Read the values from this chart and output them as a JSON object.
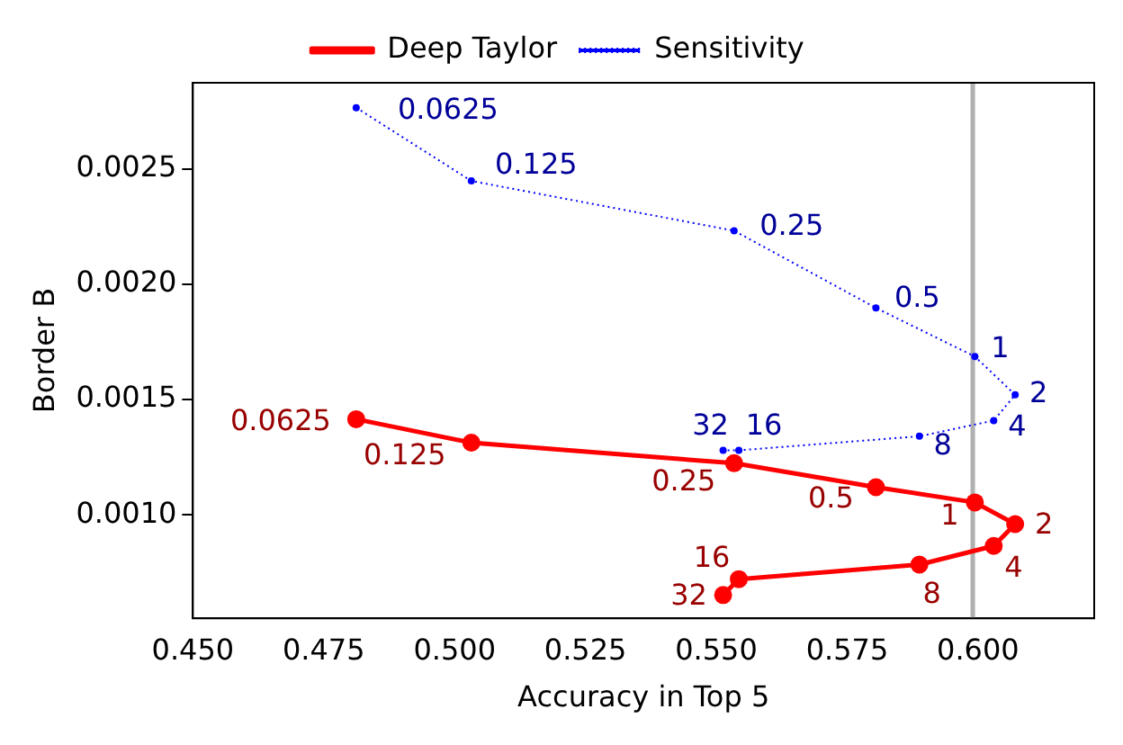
{
  "chart_data": {
    "type": "line",
    "xlabel": "Accuracy in Top 5",
    "ylabel": "Border B",
    "x": [
      0.4812,
      0.5032,
      0.5534,
      0.5805,
      0.5994,
      0.6071,
      0.603,
      0.5888,
      0.5543,
      0.5513
    ],
    "series": [
      {
        "name": "Deep Taylor",
        "color": "#ff0000",
        "line_style": "solid",
        "marker": "circle",
        "values": [
          0.001415,
          0.001313,
          0.001224,
          0.00112,
          0.001054,
          0.00096,
          0.000865,
          0.000784,
          0.000721,
          0.000652
        ]
      },
      {
        "name": "Sensitivity",
        "color": "#0000ff",
        "line_style": "dotted",
        "marker": "circle",
        "values": [
          0.002767,
          0.002449,
          0.002233,
          0.001898,
          0.001687,
          0.001521,
          0.001409,
          0.001341,
          0.00128,
          0.00128
        ]
      }
    ],
    "xlim": [
      0.45,
      0.6222
    ],
    "ylim": [
      0.000551,
      0.002875
    ],
    "xticks": [
      {
        "value": 0.45,
        "label": "0.450"
      },
      {
        "value": 0.475,
        "label": "0.475"
      },
      {
        "value": 0.5,
        "label": "0.500"
      },
      {
        "value": 0.525,
        "label": "0.525"
      },
      {
        "value": 0.55,
        "label": "0.550"
      },
      {
        "value": 0.575,
        "label": "0.575"
      },
      {
        "value": 0.6,
        "label": "0.600"
      }
    ],
    "yticks": [
      {
        "value": 0.001,
        "label": "0.0010"
      },
      {
        "value": 0.0015,
        "label": "0.0015"
      },
      {
        "value": 0.002,
        "label": "0.0020"
      },
      {
        "value": 0.0025,
        "label": "0.0025"
      }
    ],
    "ref_lines": [
      {
        "axis": "x",
        "value": 0.599,
        "color": "#b0b0b0"
      }
    ],
    "grid": false,
    "legend": "top",
    "annotations": [
      {
        "text": "0.0625",
        "x": 0.4812,
        "y": 0.001415
      },
      {
        "text": "0.125",
        "x": 0.5032,
        "y": 0.001313
      },
      {
        "text": "0.25",
        "x": 0.5534,
        "y": 0.001224
      },
      {
        "text": "0.5",
        "x": 0.5805,
        "y": 0.00112
      },
      {
        "text": "1",
        "x": 0.5994,
        "y": 0.001054
      },
      {
        "text": "2",
        "x": 0.6071,
        "y": 0.00096
      },
      {
        "text": "4",
        "x": 0.603,
        "y": 0.000865
      },
      {
        "text": "8",
        "x": 0.5888,
        "y": 0.000784
      },
      {
        "text": "16",
        "x": 0.5543,
        "y": 0.000721
      },
      {
        "text": "32",
        "x": 0.5513,
        "y": 0.000652
      },
      {
        "text": "0.0625",
        "x": 0.4812,
        "y": 0.002767
      },
      {
        "text": "0.125",
        "x": 0.5032,
        "y": 0.002449
      },
      {
        "text": "0.25",
        "x": 0.5534,
        "y": 0.002233
      },
      {
        "text": "0.5",
        "x": 0.5805,
        "y": 0.001898
      },
      {
        "text": "1",
        "x": 0.5994,
        "y": 0.001687
      },
      {
        "text": "2",
        "x": 0.6071,
        "y": 0.001521
      },
      {
        "text": "4",
        "x": 0.603,
        "y": 0.001409
      },
      {
        "text": "8",
        "x": 0.5888,
        "y": 0.001341
      },
      {
        "text": "16",
        "x": 0.5543,
        "y": 0.00128
      },
      {
        "text": "32",
        "x": 0.5513,
        "y": 0.00128
      }
    ]
  }
}
